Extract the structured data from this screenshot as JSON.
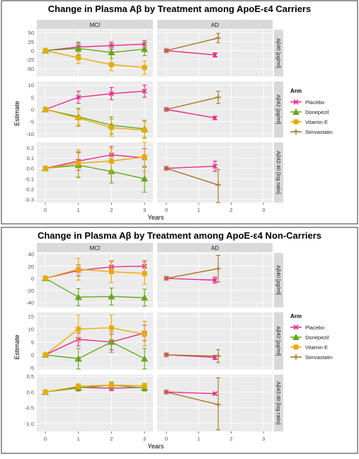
{
  "colors": {
    "Placebo": "#e7298a",
    "Donepezil": "#66a61e",
    "Vitamin E": "#e6ab02",
    "Simvastatin": "#a6761d",
    "panel_bg": "#ebebeb",
    "strip_bg": "#d9d9d9",
    "grid": "#ffffff"
  },
  "chart_data": [
    {
      "type": "line",
      "title": "Change in Plasma Aβ by Treatment among ApoE-ε4 Carriers",
      "xlabel": "Years",
      "ylabel": "Estimate",
      "columns": [
        "MCI",
        "AD"
      ],
      "legend": {
        "title": "Arm",
        "entries": [
          "Placebo",
          "Donepezil",
          "Vitamin E",
          "Simvastatin"
        ],
        "placement": "right"
      },
      "rows": [
        {
          "label": "Aβ40 [pg/ml]",
          "ylim": [
            -72,
            58
          ],
          "yticks": [
            -50,
            -25,
            0,
            25,
            50
          ],
          "ytick_labels": [
            "-50",
            "-25",
            "0",
            "25",
            "50"
          ],
          "MCI": [
            {
              "name": "Placebo",
              "x": [
                0,
                1,
                2,
                3
              ],
              "y": [
                0,
                10,
                14,
                18
              ],
              "lo": [
                0,
                0,
                4,
                8
              ],
              "hi": [
                0,
                20,
                24,
                28
              ]
            },
            {
              "name": "Donepezil",
              "x": [
                0,
                1,
                2,
                3
              ],
              "y": [
                0,
                6,
                -5,
                4
              ],
              "lo": [
                0,
                -12,
                -22,
                -14
              ],
              "hi": [
                0,
                24,
                12,
                22
              ]
            },
            {
              "name": "Vitamin E",
              "x": [
                0,
                1,
                2,
                3
              ],
              "y": [
                0,
                -20,
                -39,
                -47
              ],
              "lo": [
                0,
                -36,
                -56,
                -66
              ],
              "hi": [
                0,
                -4,
                -22,
                -28
              ]
            }
          ],
          "AD": [
            {
              "name": "Placebo",
              "x": [
                0,
                1.5
              ],
              "y": [
                0,
                -12
              ],
              "lo": [
                0,
                -18
              ],
              "hi": [
                0,
                -6
              ]
            },
            {
              "name": "Simvastatin",
              "x": [
                0,
                1.6
              ],
              "y": [
                0,
                35
              ],
              "lo": [
                0,
                22
              ],
              "hi": [
                0,
                48
              ]
            }
          ]
        },
        {
          "label": "Aβ42 [pg/ml]",
          "ylim": [
            -11.5,
            11.5
          ],
          "yticks": [
            -10,
            -5,
            0,
            5,
            10
          ],
          "ytick_labels": [
            "-10",
            "-5",
            "0",
            "5",
            "10"
          ],
          "MCI": [
            {
              "name": "Placebo",
              "x": [
                0,
                1,
                2,
                3
              ],
              "y": [
                0,
                5,
                6.5,
                7.5
              ],
              "lo": [
                0,
                2.5,
                4,
                5
              ],
              "hi": [
                0,
                7.5,
                9,
                10
              ]
            },
            {
              "name": "Donepezil",
              "x": [
                0,
                1,
                2,
                3
              ],
              "y": [
                0,
                -3,
                -6.5,
                -8
              ],
              "lo": [
                0,
                -6.5,
                -10,
                -11.5
              ],
              "hi": [
                0,
                0.5,
                -3,
                -4.5
              ]
            },
            {
              "name": "Vitamin E",
              "x": [
                0,
                1,
                2,
                3
              ],
              "y": [
                0,
                -3.5,
                -7.5,
                -8.5
              ],
              "lo": [
                0,
                -7,
                -11,
                -12
              ],
              "hi": [
                0,
                0,
                -4,
                -5
              ]
            }
          ],
          "AD": [
            {
              "name": "Placebo",
              "x": [
                0,
                1.5
              ],
              "y": [
                0,
                -3.5
              ],
              "lo": [
                0,
                -4.2
              ],
              "hi": [
                0,
                -2.8
              ]
            },
            {
              "name": "Simvastatin",
              "x": [
                0,
                1.6
              ],
              "y": [
                0,
                5
              ],
              "lo": [
                0,
                2.5
              ],
              "hi": [
                0,
                7.5
              ]
            }
          ]
        },
        {
          "label": "Aβ42:40 [log ratio]",
          "ylim": [
            -0.33,
            0.25
          ],
          "yticks": [
            -0.3,
            -0.2,
            -0.1,
            0,
            0.1,
            0.2
          ],
          "ytick_labels": [
            "-0.3",
            "-0.2",
            "-0.1",
            "0.0",
            "0.1",
            "0.2"
          ],
          "MCI": [
            {
              "name": "Placebo",
              "x": [
                0,
                1,
                2,
                3
              ],
              "y": [
                0,
                0.07,
                0.13,
                0.1
              ],
              "lo": [
                0,
                -0.02,
                0.05,
                0.01
              ],
              "hi": [
                0,
                0.16,
                0.21,
                0.19
              ]
            },
            {
              "name": "Donepezil",
              "x": [
                0,
                1,
                2,
                3
              ],
              "y": [
                0,
                0.03,
                -0.03,
                -0.1
              ],
              "lo": [
                0,
                -0.09,
                -0.14,
                -0.23
              ],
              "hi": [
                0,
                0.15,
                0.08,
                0.02
              ]
            },
            {
              "name": "Vitamin E",
              "x": [
                0,
                1,
                2,
                3
              ],
              "y": [
                0,
                0.05,
                0.07,
                0.11
              ],
              "lo": [
                0,
                -0.08,
                -0.05,
                -0.03
              ],
              "hi": [
                0,
                0.18,
                0.19,
                0.25
              ]
            }
          ],
          "AD": [
            {
              "name": "Placebo",
              "x": [
                0,
                1.5
              ],
              "y": [
                0,
                0.02
              ],
              "lo": [
                0,
                -0.03
              ],
              "hi": [
                0,
                0.07
              ]
            },
            {
              "name": "Simvastatin",
              "x": [
                0,
                1.6
              ],
              "y": [
                0,
                -0.16
              ],
              "lo": [
                0,
                -0.33
              ],
              "hi": [
                0,
                -0.01
              ]
            }
          ]
        }
      ]
    },
    {
      "type": "line",
      "title": "Change in Plasma Aβ by Treatment among ApoE-ε4 Non-Carriers",
      "xlabel": "Years",
      "ylabel": "Estimate",
      "columns": [
        "MCI",
        "AD"
      ],
      "legend": {
        "title": "Arm",
        "entries": [
          "Placebo",
          "Donepezil",
          "Vitamin E",
          "Simvastatin"
        ],
        "placement": "right"
      },
      "rows": [
        {
          "label": "Aβ40 [pg/ml]",
          "ylim": [
            -48,
            42
          ],
          "yticks": [
            -40,
            -20,
            0,
            20,
            40
          ],
          "ytick_labels": [
            "-40",
            "-20",
            "0",
            "20",
            "40"
          ],
          "MCI": [
            {
              "name": "Placebo",
              "x": [
                0,
                1,
                2,
                3
              ],
              "y": [
                0,
                13,
                19,
                20
              ],
              "lo": [
                0,
                4,
                10,
                11
              ],
              "hi": [
                0,
                22,
                28,
                29
              ]
            },
            {
              "name": "Donepezil",
              "x": [
                0,
                1,
                2,
                3
              ],
              "y": [
                0,
                -31,
                -30,
                -32
              ],
              "lo": [
                0,
                -45,
                -44,
                -46
              ],
              "hi": [
                0,
                -17,
                -16,
                -18
              ]
            },
            {
              "name": "Vitamin E",
              "x": [
                0,
                1,
                2,
                3
              ],
              "y": [
                0,
                15,
                11,
                8
              ],
              "lo": [
                0,
                -3,
                -7,
                -10
              ],
              "hi": [
                0,
                33,
                29,
                26
              ]
            }
          ],
          "AD": [
            {
              "name": "Placebo",
              "x": [
                0,
                1.5
              ],
              "y": [
                0,
                -3
              ],
              "lo": [
                0,
                -8
              ],
              "hi": [
                0,
                2
              ]
            },
            {
              "name": "Simvastatin",
              "x": [
                0,
                1.6
              ],
              "y": [
                0,
                16
              ],
              "lo": [
                0,
                -6
              ],
              "hi": [
                0,
                38
              ]
            }
          ]
        },
        {
          "label": "Aβ42 [pg/ml]",
          "ylim": [
            -5.8,
            16.5
          ],
          "yticks": [
            -5,
            0,
            5,
            10,
            15
          ],
          "ytick_labels": [
            "-5",
            "0",
            "5",
            "10",
            "15"
          ],
          "MCI": [
            {
              "name": "Placebo",
              "x": [
                0,
                1,
                2,
                3
              ],
              "y": [
                0,
                6,
                5,
                8.5
              ],
              "lo": [
                0,
                3.5,
                2,
                5.5
              ],
              "hi": [
                0,
                8.5,
                8,
                11.5
              ]
            },
            {
              "name": "Donepezil",
              "x": [
                0,
                1,
                2,
                3
              ],
              "y": [
                0,
                -1.5,
                5,
                -1.5
              ],
              "lo": [
                0,
                -5.5,
                1,
                -5.5
              ],
              "hi": [
                0,
                2.5,
                9,
                2.5
              ]
            },
            {
              "name": "Vitamin E",
              "x": [
                0,
                1,
                2,
                3
              ],
              "y": [
                0,
                10,
                10.5,
                8
              ],
              "lo": [
                0,
                5.5,
                6,
                3.5
              ],
              "hi": [
                0,
                15.5,
                15.5,
                13
              ]
            }
          ],
          "AD": [
            {
              "name": "Placebo",
              "x": [
                0,
                1.5
              ],
              "y": [
                0,
                -1
              ],
              "lo": [
                0,
                -1.8
              ],
              "hi": [
                0,
                -0.2
              ]
            },
            {
              "name": "Simvastatin",
              "x": [
                0,
                1.6
              ],
              "y": [
                0,
                -0.5
              ],
              "lo": [
                0,
                -3
              ],
              "hi": [
                0,
                2
              ]
            }
          ]
        },
        {
          "label": "Aβ42:40 [log ratio]",
          "ylim": [
            -1.25,
            0.55
          ],
          "yticks": [
            -1,
            -0.5,
            0,
            0.5
          ],
          "ytick_labels": [
            "-1.0",
            "-0.5",
            "0.0",
            "0.5"
          ],
          "MCI": [
            {
              "name": "Placebo",
              "x": [
                0,
                1,
                2,
                3
              ],
              "y": [
                0,
                0.15,
                0.12,
                0.15
              ],
              "lo": [
                0,
                0.07,
                0.04,
                0.07
              ],
              "hi": [
                0,
                0.23,
                0.2,
                0.23
              ]
            },
            {
              "name": "Donepezil",
              "x": [
                0,
                1,
                2,
                3
              ],
              "y": [
                0,
                0.13,
                0.22,
                0.13
              ],
              "lo": [
                0,
                0.03,
                0.12,
                0.03
              ],
              "hi": [
                0,
                0.23,
                0.32,
                0.23
              ]
            },
            {
              "name": "Vitamin E",
              "x": [
                0,
                1,
                2,
                3
              ],
              "y": [
                0,
                0.18,
                0.22,
                0.2
              ],
              "lo": [
                0,
                0.1,
                0.14,
                0.12
              ],
              "hi": [
                0,
                0.26,
                0.3,
                0.28
              ]
            }
          ],
          "AD": [
            {
              "name": "Placebo",
              "x": [
                0,
                1.5
              ],
              "y": [
                0,
                -0.05
              ],
              "lo": [
                0,
                -0.08
              ],
              "hi": [
                0,
                -0.02
              ]
            },
            {
              "name": "Simvastatin",
              "x": [
                0,
                1.6
              ],
              "y": [
                0,
                -0.4
              ],
              "lo": [
                0,
                -1.2
              ],
              "hi": [
                0,
                0.45
              ]
            }
          ]
        }
      ]
    }
  ]
}
